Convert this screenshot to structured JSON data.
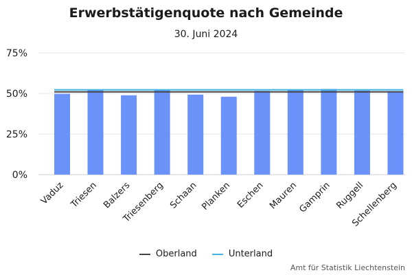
{
  "chart_data": {
    "type": "bar",
    "title": "Erwerbstätigenquote nach Gemeinde",
    "subtitle": "30. Juni 2024",
    "categories": [
      "Vaduz",
      "Triesen",
      "Balzers",
      "Triesenberg",
      "Schaan",
      "Planken",
      "Eschen",
      "Mauren",
      "Gamprin",
      "Ruggell",
      "Schellenberg"
    ],
    "values": [
      49.8,
      52.0,
      48.9,
      52.1,
      49.3,
      48.0,
      51.6,
      52.0,
      52.8,
      51.8,
      51.5
    ],
    "reference_lines": [
      {
        "name": "Oberland",
        "value": 51.0,
        "color": "#444444"
      },
      {
        "name": "Unterland",
        "value": 52.3,
        "color": "#42b4e6"
      }
    ],
    "ylim": [
      0,
      75
    ],
    "yticks": [
      0,
      25,
      50,
      75
    ],
    "ytick_format": "percent",
    "grid": true,
    "legend_position": "bottom",
    "bar_color": "#6a92f8"
  },
  "legend": {
    "items": [
      {
        "label": "Oberland",
        "color": "#444444"
      },
      {
        "label": "Unterland",
        "color": "#42b4e6"
      }
    ]
  },
  "source": "Amt für Statistik Liechtenstein"
}
